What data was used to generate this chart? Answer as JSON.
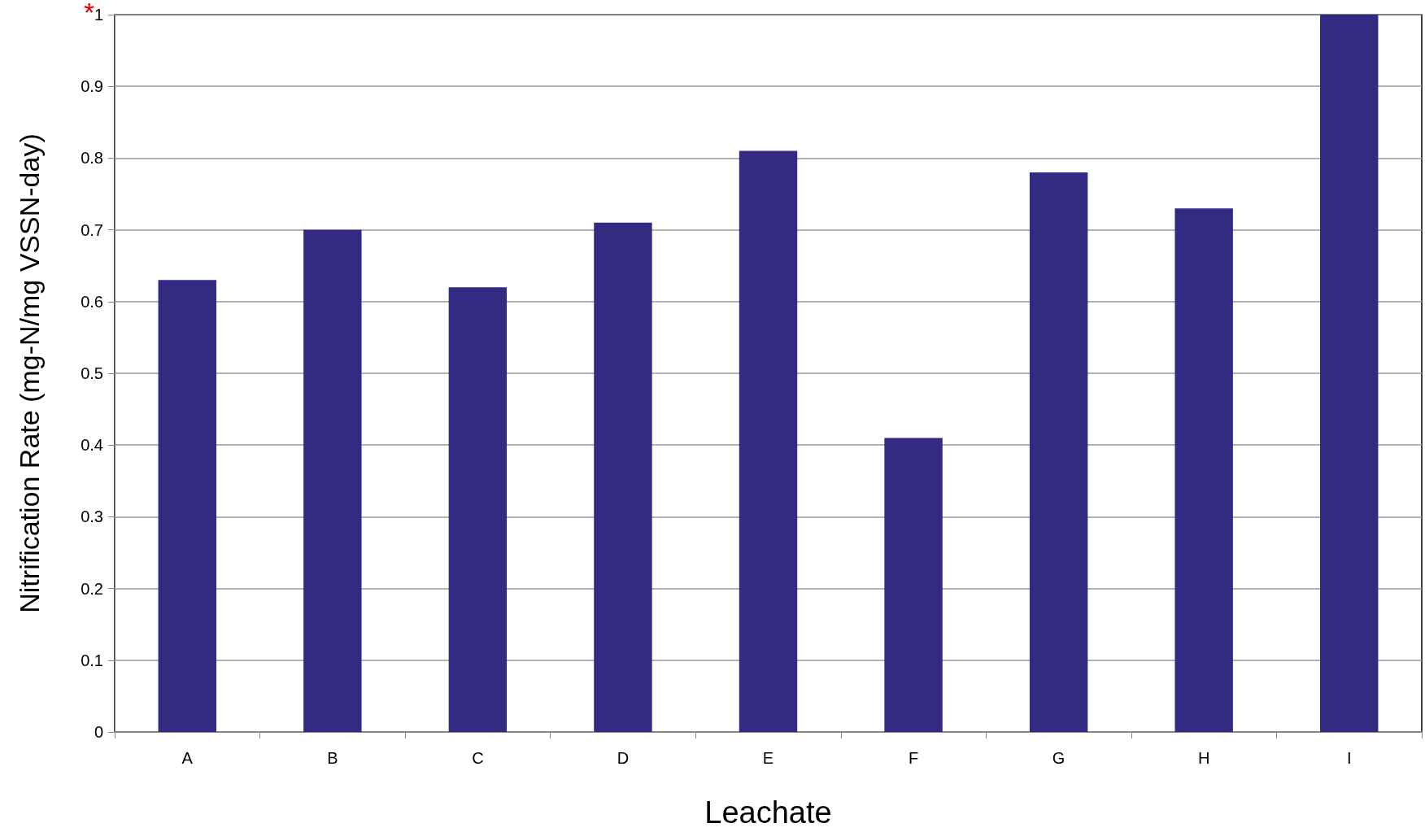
{
  "chart_data": {
    "type": "bar",
    "xlabel": "Leachate",
    "ylabel": "Nitrification Rate (mg-N/mg VSSN-day)",
    "categories": [
      "A",
      "B",
      "C",
      "D",
      "E",
      "F",
      "G",
      "H",
      "I"
    ],
    "values": [
      0.63,
      0.7,
      0.62,
      0.71,
      0.81,
      0.41,
      0.78,
      0.73,
      1.0
    ],
    "color": "#332a82",
    "ylim": [
      0,
      1
    ],
    "yticks": [
      0,
      0.1,
      0.2,
      0.3,
      0.4,
      0.5,
      0.6,
      0.7,
      0.8,
      0.9,
      1
    ],
    "grid": "y",
    "annotations": [
      "*"
    ]
  }
}
